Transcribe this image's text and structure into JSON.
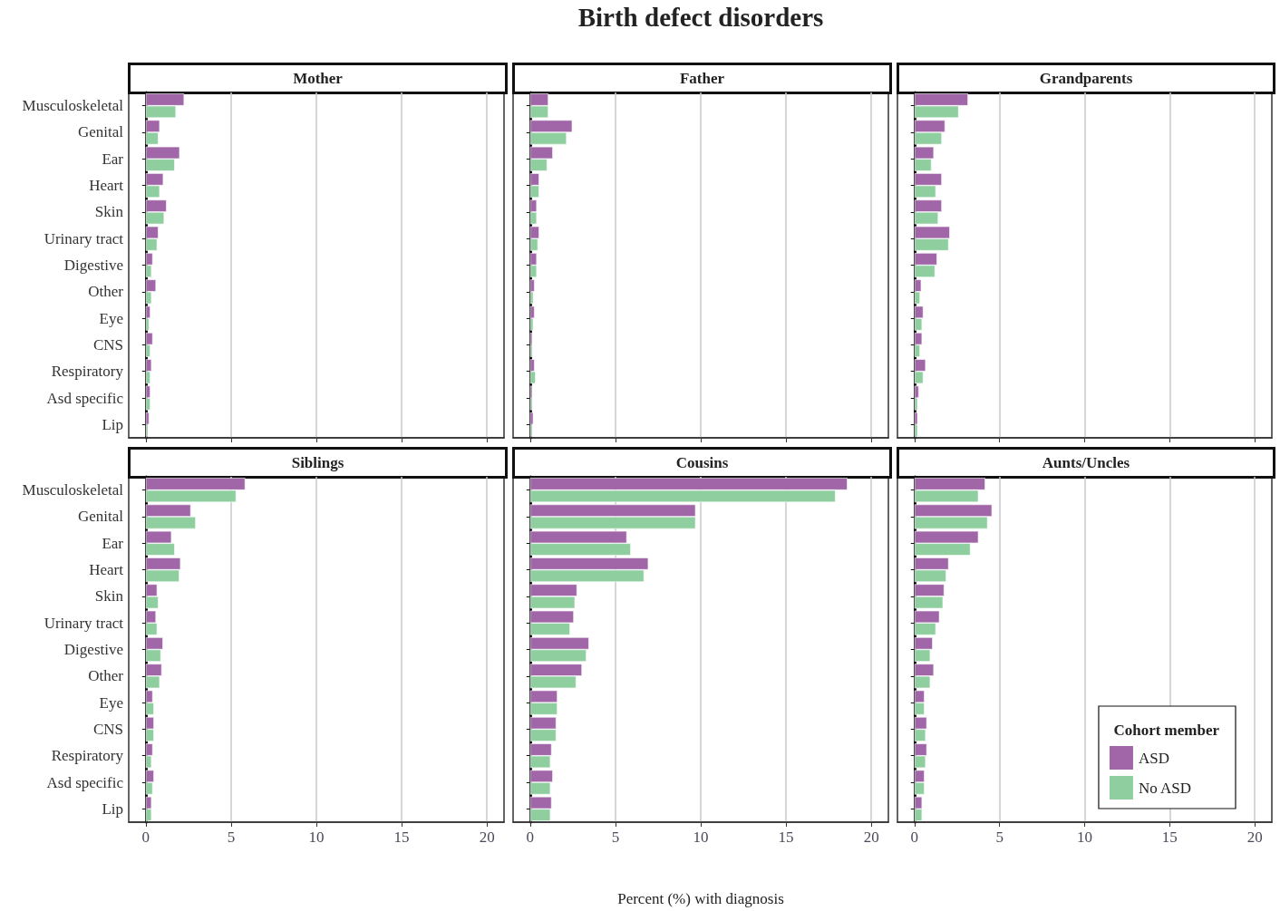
{
  "chart_data": [
    {
      "type": "bar",
      "orientation": "horizontal",
      "subtitle": "Mother",
      "categories": [
        "Musculoskeletal",
        "Genital",
        "Ear",
        "Heart",
        "Skin",
        "Urinary tract",
        "Digestive",
        "Other",
        "Eye",
        "CNS",
        "Respiratory",
        "Asd specific",
        "Lip"
      ],
      "series": [
        {
          "color": "#a066a8",
          "values": [
            2.25,
            0.82,
            1.99,
            1.03,
            1.22,
            0.74,
            0.41,
            0.6,
            0.27,
            0.41,
            0.34,
            0.27,
            0.2
          ]
        },
        {
          "color": "#8fcf9f",
          "values": [
            1.77,
            0.74,
            1.7,
            0.82,
            1.08,
            0.67,
            0.34,
            0.34,
            0.2,
            0.27,
            0.27,
            0.27,
            0.12
          ]
        }
      ],
      "xlim": [
        -1,
        21
      ],
      "xticks": [
        0,
        5,
        10,
        15,
        20
      ],
      "grid": "x",
      "tick_labels": "y"
    },
    {
      "type": "bar",
      "orientation": "horizontal",
      "title": "Birth defect disorders",
      "subtitle": "Father",
      "categories": [
        null,
        null,
        null,
        null,
        null,
        null,
        null,
        null,
        null,
        null,
        null,
        null,
        null
      ],
      "series": [
        {
          "color": "#a066a8",
          "values": [
            1.07,
            2.47,
            1.33,
            0.53,
            0.39,
            0.53,
            0.39,
            0.26,
            0.26,
            0.12,
            0.26,
            0.12,
            0.19
          ]
        },
        {
          "color": "#8fcf9f",
          "values": [
            1.07,
            2.14,
            1.0,
            0.53,
            0.39,
            0.46,
            0.39,
            0.19,
            0.19,
            0.12,
            0.32,
            0.12,
            0.12
          ]
        }
      ],
      "xlim": [
        -1,
        21
      ],
      "xticks": [
        0,
        5,
        10,
        15,
        20
      ],
      "grid": "x",
      "tick_labels": false
    },
    {
      "type": "bar",
      "orientation": "horizontal",
      "subtitle": "Grandparents",
      "categories": [
        null,
        null,
        null,
        null,
        null,
        null,
        null,
        null,
        null,
        null,
        null,
        null,
        null
      ],
      "series": [
        {
          "color": "#a066a8",
          "values": [
            3.15,
            1.8,
            1.14,
            1.61,
            1.61,
            2.08,
            1.33,
            0.4,
            0.52,
            0.45,
            0.66,
            0.26,
            0.19
          ]
        },
        {
          "color": "#8fcf9f",
          "values": [
            2.6,
            1.61,
            1.0,
            1.26,
            1.4,
            2.01,
            1.21,
            0.33,
            0.45,
            0.33,
            0.52,
            0.19,
            0.19
          ]
        }
      ],
      "xlim": [
        -1,
        21
      ],
      "xticks": [
        0,
        5,
        10,
        15,
        20
      ],
      "grid": "x",
      "tick_labels": false
    },
    {
      "type": "bar",
      "orientation": "horizontal",
      "subtitle": "Siblings",
      "categories": [
        "Musculoskeletal",
        "Genital",
        "Ear",
        "Heart",
        "Skin",
        "Urinary tract",
        "Digestive",
        "Other",
        "Eye",
        "CNS",
        "Respiratory",
        "Asd specific",
        "Lip"
      ],
      "series": [
        {
          "color": "#a066a8",
          "values": [
            5.83,
            2.64,
            1.51,
            2.04,
            0.67,
            0.6,
            1.01,
            0.94,
            0.41,
            0.48,
            0.41,
            0.48,
            0.34
          ]
        },
        {
          "color": "#8fcf9f",
          "values": [
            5.3,
            2.93,
            1.7,
            1.97,
            0.74,
            0.67,
            0.89,
            0.82,
            0.48,
            0.48,
            0.34,
            0.41,
            0.34
          ]
        }
      ],
      "xlim": [
        -1,
        21
      ],
      "xticks": [
        0,
        5,
        10,
        15,
        20
      ],
      "grid": "x"
    },
    {
      "type": "bar",
      "orientation": "horizontal",
      "subtitle": "Cousins",
      "xlabel": "Percent (%) with diagnosis",
      "categories": [
        null,
        null,
        null,
        null,
        null,
        null,
        null,
        null,
        null,
        null,
        null,
        null,
        null
      ],
      "series": [
        {
          "color": "#a066a8",
          "values": [
            18.6,
            9.7,
            5.67,
            6.93,
            2.75,
            2.56,
            3.45,
            3.04,
            1.6,
            1.53,
            1.26,
            1.33,
            1.26
          ]
        },
        {
          "color": "#8fcf9f",
          "values": [
            17.9,
            9.7,
            5.9,
            6.68,
            2.63,
            2.34,
            3.3,
            2.7,
            1.6,
            1.53,
            1.19,
            1.19,
            1.19
          ]
        }
      ],
      "xlim": [
        -1,
        21
      ],
      "xticks": [
        0,
        5,
        10,
        15,
        20
      ],
      "grid": "x",
      "tick_labels": "x"
    },
    {
      "type": "bar",
      "orientation": "horizontal",
      "subtitle": "Aunts/Uncles",
      "legend_title": "Cohort member",
      "legend": "bottom right",
      "categories": [
        null,
        null,
        null,
        null,
        null,
        null,
        null,
        null,
        null,
        null,
        null,
        null,
        null
      ],
      "series": [
        {
          "name": "ASD",
          "color": "#a066a8",
          "values": [
            4.16,
            4.56,
            3.76,
            2.01,
            1.75,
            1.47,
            1.07,
            1.14,
            0.59,
            0.73,
            0.73,
            0.59,
            0.45
          ]
        },
        {
          "name": "No ASD",
          "color": "#8fcf9f",
          "values": [
            3.76,
            4.3,
            3.29,
            1.87,
            1.68,
            1.26,
            0.93,
            0.93,
            0.59,
            0.66,
            0.66,
            0.59,
            0.45
          ]
        }
      ],
      "xlim": [
        -1,
        21
      ],
      "xticks": [
        0,
        5,
        10,
        15,
        20
      ],
      "grid": "x",
      "tick_labels": "x"
    }
  ]
}
